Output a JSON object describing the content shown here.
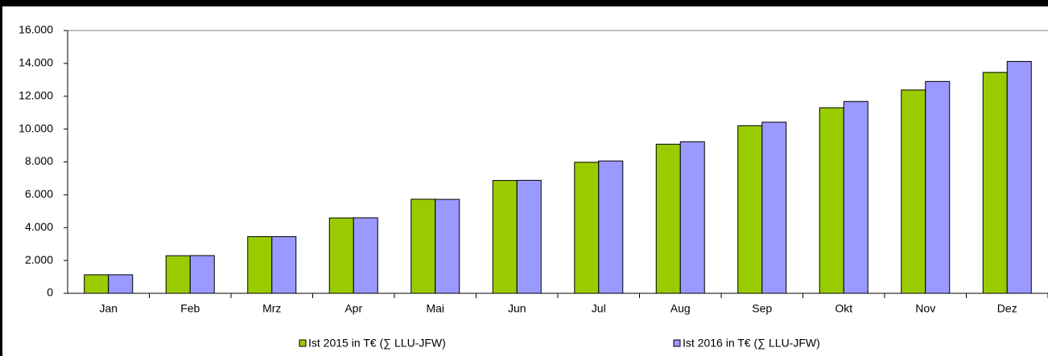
{
  "chart_data": {
    "type": "bar",
    "categories": [
      "Jan",
      "Feb",
      "Mrz",
      "Apr",
      "Mai",
      "Jun",
      "Jul",
      "Aug",
      "Sep",
      "Okt",
      "Nov",
      "Dez"
    ],
    "series": [
      {
        "name": "Ist 2015 in T€ (∑ LLU-JFW)",
        "color": "#99cc00",
        "values": [
          1130,
          2290,
          3450,
          4590,
          5730,
          6870,
          7980,
          9080,
          10200,
          11300,
          12380,
          13450
        ]
      },
      {
        "name": "Ist 2016 in T€ (∑ LLU-JFW)",
        "color": "#9999ff",
        "values": [
          1130,
          2300,
          3450,
          4600,
          5720,
          6880,
          8060,
          9230,
          10420,
          11680,
          12900,
          14120
        ]
      }
    ],
    "ylim": [
      0,
      16000
    ],
    "yticks": [
      0,
      {
        "value": 2000,
        "label": "2.000"
      },
      {
        "value": 4000,
        "label": "4.000"
      },
      {
        "value": 6000,
        "label": "6.000"
      },
      {
        "value": 8000,
        "label": "8.000"
      },
      {
        "value": 10000,
        "label": "10.000"
      },
      {
        "value": 12000,
        "label": "12.000"
      },
      {
        "value": 14000,
        "label": "14.000"
      },
      {
        "value": 16000,
        "label": "16.000"
      }
    ],
    "grid": false,
    "legend": "bottom"
  }
}
